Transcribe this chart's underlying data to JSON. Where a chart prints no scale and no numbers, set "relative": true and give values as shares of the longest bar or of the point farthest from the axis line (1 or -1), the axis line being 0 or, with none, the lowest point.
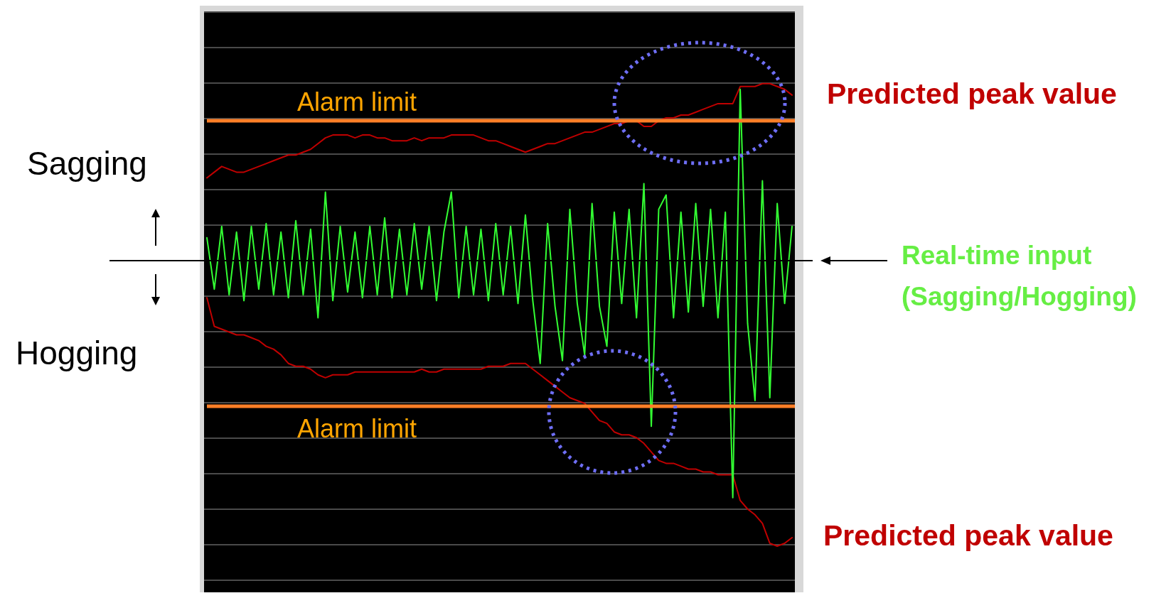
{
  "chart_data": {
    "type": "line",
    "relative": true,
    "grid": "y",
    "line_style": "solid",
    "categories": [
      null,
      null,
      null,
      null,
      null,
      null,
      null,
      null,
      null,
      null,
      null,
      null,
      null,
      null,
      null,
      null,
      null,
      null,
      null,
      null,
      null,
      null,
      null,
      null,
      null,
      null,
      null,
      null,
      null,
      null,
      null,
      null,
      null,
      null,
      null,
      null,
      null,
      null,
      null,
      null,
      null,
      null,
      null,
      null,
      null,
      null,
      null,
      null,
      null,
      null,
      null,
      null,
      null,
      null,
      null,
      null,
      null,
      null,
      null,
      null,
      null,
      null,
      null,
      null,
      null,
      null,
      null,
      null,
      null,
      null,
      null,
      null,
      null,
      null,
      null,
      null,
      null,
      null,
      null,
      null
    ],
    "series": [
      {
        "name": "Predicted peak value",
        "color": "#c00000",
        "values": [
          0.29,
          0.31,
          0.33,
          0.32,
          0.31,
          0.31,
          0.32,
          0.33,
          0.34,
          0.35,
          0.36,
          0.37,
          0.37,
          0.38,
          0.39,
          0.41,
          0.43,
          0.44,
          0.44,
          0.44,
          0.43,
          0.44,
          0.44,
          0.43,
          0.43,
          0.42,
          0.42,
          0.42,
          0.43,
          0.42,
          0.43,
          0.43,
          0.43,
          0.44,
          0.44,
          0.44,
          0.44,
          0.43,
          0.42,
          0.42,
          0.41,
          0.4,
          0.39,
          0.38,
          0.39,
          0.4,
          0.41,
          0.41,
          0.42,
          0.43,
          0.44,
          0.45,
          0.45,
          0.46,
          0.47,
          0.48,
          0.48,
          0.49,
          0.49,
          0.47,
          0.47,
          0.49,
          0.5,
          0.5,
          0.51,
          0.51,
          0.52,
          0.53,
          0.54,
          0.55,
          0.55,
          0.55,
          0.61,
          0.61,
          0.61,
          0.62,
          0.62,
          0.61,
          0.6,
          0.58
        ]
      },
      {
        "name": "Predicted peak value",
        "color": "#c00000",
        "values": [
          -0.13,
          -0.23,
          -0.24,
          -0.25,
          -0.26,
          -0.26,
          -0.27,
          -0.28,
          -0.3,
          -0.31,
          -0.33,
          -0.36,
          -0.37,
          -0.37,
          -0.38,
          -0.4,
          -0.41,
          -0.4,
          -0.4,
          -0.4,
          -0.39,
          -0.39,
          -0.39,
          -0.39,
          -0.39,
          -0.39,
          -0.39,
          -0.39,
          -0.39,
          -0.38,
          -0.39,
          -0.39,
          -0.38,
          -0.38,
          -0.38,
          -0.38,
          -0.38,
          -0.38,
          -0.37,
          -0.37,
          -0.37,
          -0.36,
          -0.36,
          -0.36,
          -0.38,
          -0.4,
          -0.42,
          -0.44,
          -0.46,
          -0.48,
          -0.49,
          -0.5,
          -0.53,
          -0.56,
          -0.57,
          -0.6,
          -0.61,
          -0.61,
          -0.62,
          -0.64,
          -0.67,
          -0.7,
          -0.71,
          -0.71,
          -0.72,
          -0.73,
          -0.73,
          -0.74,
          -0.74,
          -0.75,
          -0.75,
          -0.75,
          -0.84,
          -0.87,
          -0.89,
          -0.92,
          -0.99,
          -1.0,
          -0.99,
          -0.97
        ]
      },
      {
        "name": "Real-time input (Sagging/Hogging)",
        "color": "#33ff33",
        "values": [
          0.08,
          -0.1,
          0.12,
          -0.12,
          0.1,
          -0.14,
          0.12,
          -0.1,
          0.13,
          -0.12,
          0.1,
          -0.13,
          0.14,
          -0.12,
          0.11,
          -0.2,
          0.24,
          -0.14,
          0.12,
          -0.11,
          0.1,
          -0.13,
          0.12,
          -0.12,
          0.15,
          -0.13,
          0.11,
          -0.12,
          0.13,
          -0.1,
          0.12,
          -0.14,
          0.1,
          0.24,
          -0.13,
          0.12,
          -0.12,
          0.11,
          -0.14,
          0.13,
          -0.12,
          0.12,
          -0.15,
          0.16,
          -0.14,
          -0.36,
          0.13,
          -0.16,
          -0.35,
          0.18,
          -0.15,
          -0.33,
          0.2,
          -0.16,
          -0.3,
          0.17,
          -0.15,
          0.18,
          -0.2,
          0.27,
          -0.58,
          0.18,
          0.23,
          -0.2,
          0.17,
          -0.18,
          0.2,
          -0.16,
          0.18,
          -0.2,
          0.17,
          -0.83,
          0.6,
          -0.22,
          -0.49,
          0.28,
          -0.48,
          0.2,
          -0.15,
          0.12
        ]
      }
    ],
    "ref_lines": [
      {
        "axis": "y",
        "value": 0.49,
        "label": "Alarm limit",
        "color": "#ff7f27"
      },
      {
        "axis": "y",
        "value": -0.51,
        "label": "Alarm limit",
        "color": "#ff7f27"
      }
    ],
    "annotations": [
      "Sagging",
      "Hogging"
    ]
  }
}
